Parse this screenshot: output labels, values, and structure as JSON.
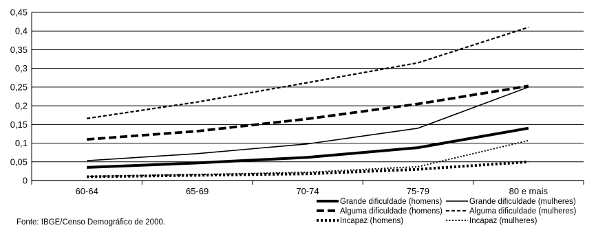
{
  "chart_data": {
    "type": "line",
    "categories": [
      "60-64",
      "65-69",
      "70-74",
      "75-79",
      "80 e mais"
    ],
    "ylim": [
      0,
      0.45
    ],
    "yticks": [
      0,
      0.05,
      0.1,
      0.15,
      0.2,
      0.25,
      0.3,
      0.35,
      0.4,
      0.45
    ],
    "ytick_labels": [
      "0",
      "0,05",
      "0,1",
      "0,15",
      "0,2",
      "0,25",
      "0,3",
      "0,35",
      "0,4",
      "0,45"
    ],
    "grid": "horizontal",
    "legend_position": "bottom-right",
    "series": [
      {
        "name": "Grande dificuldade (homens)",
        "style": "thick-solid",
        "values": [
          0.035,
          0.047,
          0.062,
          0.088,
          0.14
        ]
      },
      {
        "name": "Grande dificuldade (mulheres)",
        "style": "solid",
        "values": [
          0.053,
          0.072,
          0.098,
          0.14,
          0.25
        ]
      },
      {
        "name": "Alguma dificuldade (homens)",
        "style": "thick-dash",
        "values": [
          0.11,
          0.132,
          0.165,
          0.205,
          0.253
        ]
      },
      {
        "name": "Alguma dificuldade (mulheres)",
        "style": "dash",
        "values": [
          0.166,
          0.21,
          0.262,
          0.315,
          0.41
        ]
      },
      {
        "name": "Incapaz (homens)",
        "style": "thick-dot",
        "values": [
          0.01,
          0.014,
          0.018,
          0.03,
          0.05
        ]
      },
      {
        "name": "Incapaz (mulheres)",
        "style": "dot",
        "values": [
          0.011,
          0.016,
          0.022,
          0.037,
          0.107
        ]
      }
    ]
  },
  "source": "Fonte: IBGE/Censo Demográfico de 2000."
}
